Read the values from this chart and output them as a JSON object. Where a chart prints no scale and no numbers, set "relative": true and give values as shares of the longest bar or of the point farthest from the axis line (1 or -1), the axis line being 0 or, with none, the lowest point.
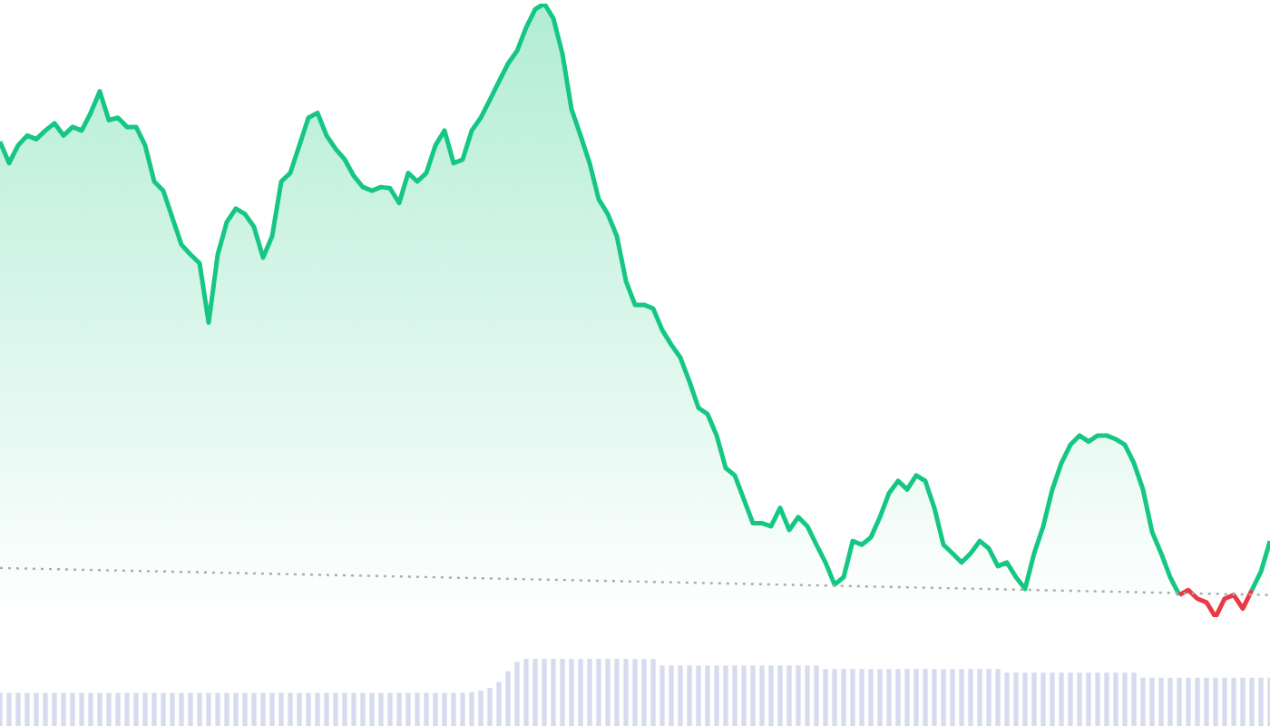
{
  "chart_data": [
    {
      "type": "area",
      "relative": true,
      "categories": [
        null,
        null,
        null,
        null,
        null,
        null,
        null,
        null,
        null,
        null,
        null,
        null,
        null,
        null,
        null,
        null,
        null,
        null,
        null,
        null,
        null,
        null,
        null,
        null,
        null,
        null,
        null,
        null,
        null,
        null,
        null,
        null,
        null,
        null,
        null,
        null,
        null,
        null,
        null,
        null,
        null,
        null,
        null,
        null,
        null,
        null,
        null,
        null,
        null,
        null,
        null,
        null,
        null,
        null,
        null,
        null,
        null,
        null,
        null,
        null,
        null,
        null,
        null,
        null,
        null,
        null,
        null,
        null,
        null,
        null,
        null,
        null,
        null,
        null,
        null,
        null,
        null,
        null,
        null,
        null,
        null,
        null,
        null,
        null,
        null,
        null,
        null,
        null,
        null,
        null,
        null,
        null,
        null,
        null,
        null,
        null,
        null,
        null,
        null,
        null,
        null,
        null,
        null,
        null,
        null,
        null,
        null,
        null,
        null,
        null,
        null,
        null,
        null,
        null,
        null,
        null,
        null,
        null,
        null,
        null,
        null,
        null,
        null,
        null,
        null,
        null,
        null,
        null,
        null,
        null,
        null,
        null,
        null,
        null,
        null,
        null,
        null,
        null,
        null,
        null,
        null
      ],
      "series": [
        {
          "color": "#16c784",
          "values": [
            0.775,
            0.74,
            0.769,
            0.785,
            0.779,
            0.793,
            0.805,
            0.785,
            0.799,
            0.793,
            0.822,
            0.857,
            0.81,
            0.814,
            0.799,
            0.799,
            0.769,
            0.71,
            0.695,
            0.651,
            0.607,
            0.591,
            0.577,
            0.48,
            0.591,
            0.644,
            0.666,
            0.657,
            0.636,
            0.586,
            0.621,
            0.71,
            0.724,
            0.769,
            0.814,
            0.822,
            0.785,
            0.763,
            0.746,
            0.719,
            0.701,
            0.695,
            0.701,
            0.699,
            0.675,
            0.724,
            0.71,
            0.724,
            0.769,
            0.793,
            0.74,
            0.746,
            0.793,
            0.814,
            0.843,
            0.873,
            0.902,
            0.923,
            0.961,
            0.991,
            1,
            0.976,
            0.918,
            0.828,
            0.785,
            0.74,
            0.681,
            0.657,
            0.621,
            0.548,
            0.509,
            0.509,
            0.503,
            0.468,
            0.444,
            0.423,
            0.384,
            0.341,
            0.331,
            0.296,
            0.243,
            0.231,
            0.192,
            0.153,
            0.153,
            0.148,
            0.178,
            0.142,
            0.163,
            0.148,
            0.118,
            0.089,
            0.053,
            0.065,
            0.124,
            0.118,
            0.13,
            0.163,
            0.202,
            0.222,
            0.208,
            0.231,
            0.222,
            0.178,
            0.118,
            0.104,
            0.089,
            0.104,
            0.124,
            0.112,
            0.083,
            0.089,
            0.065,
            0.046,
            0.104,
            0.148,
            0.208,
            0.251,
            0.281,
            0.296,
            0.286,
            0.296,
            0.296,
            0.29,
            0.281,
            0.251,
            0.208,
            0.139,
            0.104,
            0.065,
            0.036,
            null,
            null,
            null,
            null,
            null,
            null,
            null,
            0.044,
            0.074,
            0.124
          ]
        },
        {
          "type": "line",
          "color": "#ea3943",
          "values": [
            null,
            null,
            null,
            null,
            null,
            null,
            null,
            null,
            null,
            null,
            null,
            null,
            null,
            null,
            null,
            null,
            null,
            null,
            null,
            null,
            null,
            null,
            null,
            null,
            null,
            null,
            null,
            null,
            null,
            null,
            null,
            null,
            null,
            null,
            null,
            null,
            null,
            null,
            null,
            null,
            null,
            null,
            null,
            null,
            null,
            null,
            null,
            null,
            null,
            null,
            null,
            null,
            null,
            null,
            null,
            null,
            null,
            null,
            null,
            null,
            null,
            null,
            null,
            null,
            null,
            null,
            null,
            null,
            null,
            null,
            null,
            null,
            null,
            null,
            null,
            null,
            null,
            null,
            null,
            null,
            null,
            null,
            null,
            null,
            null,
            null,
            null,
            null,
            null,
            null,
            null,
            null,
            null,
            null,
            null,
            null,
            null,
            null,
            null,
            null,
            null,
            null,
            null,
            null,
            null,
            null,
            null,
            null,
            null,
            null,
            null,
            null,
            null,
            null,
            null,
            null,
            null,
            null,
            null,
            null,
            null,
            null,
            null,
            null,
            null,
            null,
            null,
            null,
            null,
            null,
            0.036,
            0.044,
            0.03,
            0.024,
            0,
            0.03,
            0.036,
            0.014,
            0.044,
            null,
            null
          ]
        },
        {
          "type": "line",
          "color": "#aaaaaa",
          "line_style": "dotted",
          "values": [
            0.08,
            null,
            null,
            null,
            null,
            null,
            null,
            null,
            null,
            null,
            null,
            null,
            null,
            null,
            null,
            null,
            null,
            null,
            null,
            null,
            null,
            null,
            null,
            null,
            null,
            null,
            null,
            null,
            null,
            null,
            null,
            null,
            null,
            null,
            null,
            null,
            null,
            null,
            null,
            null,
            null,
            null,
            null,
            null,
            null,
            null,
            null,
            null,
            null,
            null,
            null,
            null,
            null,
            null,
            null,
            null,
            null,
            null,
            null,
            null,
            null,
            null,
            null,
            null,
            null,
            null,
            null,
            null,
            null,
            null,
            null,
            null,
            null,
            null,
            null,
            null,
            null,
            null,
            null,
            null,
            null,
            null,
            null,
            null,
            null,
            null,
            null,
            null,
            null,
            null,
            null,
            null,
            null,
            null,
            null,
            null,
            null,
            null,
            null,
            null,
            null,
            null,
            null,
            null,
            null,
            null,
            null,
            null,
            null,
            null,
            null,
            null,
            null,
            null,
            null,
            null,
            null,
            null,
            null,
            null,
            null,
            null,
            null,
            null,
            null,
            null,
            null,
            null,
            null,
            null,
            null,
            null,
            null,
            null,
            null,
            null,
            null,
            null,
            null,
            null,
            0.036
          ]
        }
      ]
    },
    {
      "type": "bar",
      "relative": true,
      "categories": [
        null,
        null,
        null,
        null,
        null,
        null,
        null,
        null,
        null,
        null,
        null,
        null,
        null,
        null,
        null,
        null,
        null,
        null,
        null,
        null,
        null,
        null,
        null,
        null,
        null,
        null,
        null,
        null,
        null,
        null,
        null,
        null,
        null,
        null,
        null,
        null,
        null,
        null,
        null,
        null,
        null,
        null,
        null,
        null,
        null,
        null,
        null,
        null,
        null,
        null,
        null,
        null,
        null,
        null,
        null,
        null,
        null,
        null,
        null,
        null,
        null,
        null,
        null,
        null,
        null,
        null,
        null,
        null,
        null,
        null,
        null,
        null,
        null,
        null,
        null,
        null,
        null,
        null,
        null,
        null,
        null,
        null,
        null,
        null,
        null,
        null,
        null,
        null,
        null,
        null,
        null,
        null,
        null,
        null,
        null,
        null,
        null,
        null,
        null,
        null,
        null,
        null,
        null,
        null,
        null,
        null,
        null,
        null,
        null,
        null,
        null,
        null,
        null,
        null,
        null,
        null,
        null,
        null,
        null,
        null,
        null,
        null,
        null,
        null,
        null,
        null,
        null,
        null,
        null,
        null,
        null,
        null,
        null,
        null,
        null,
        null,
        null,
        null,
        null,
        null,
        null
      ],
      "series": [
        {
          "color": "#d6dbef",
          "values": [
            0.484,
            0.484,
            0.484,
            0.484,
            0.484,
            0.484,
            0.484,
            0.484,
            0.484,
            0.484,
            0.484,
            0.484,
            0.484,
            0.484,
            0.484,
            0.484,
            0.484,
            0.484,
            0.484,
            0.484,
            0.484,
            0.484,
            0.484,
            0.484,
            0.484,
            0.484,
            0.484,
            0.484,
            0.484,
            0.484,
            0.484,
            0.484,
            0.484,
            0.484,
            0.484,
            0.484,
            0.484,
            0.484,
            0.484,
            0.484,
            0.484,
            0.484,
            0.484,
            0.484,
            0.484,
            0.484,
            0.484,
            0.484,
            0.484,
            0.484,
            0.484,
            0.484,
            0.495,
            0.516,
            0.559,
            0.645,
            0.806,
            0.946,
            1,
            1,
            1,
            1,
            1,
            1,
            1,
            1,
            1,
            1,
            1,
            1,
            1,
            1,
            1,
            0.892,
            0.892,
            0.892,
            0.892,
            0.892,
            0.892,
            0.892,
            0.892,
            0.892,
            0.892,
            0.892,
            0.892,
            0.892,
            0.892,
            0.892,
            0.892,
            0.892,
            0.892,
            0.839,
            0.839,
            0.839,
            0.839,
            0.839,
            0.839,
            0.839,
            0.839,
            0.839,
            0.839,
            0.839,
            0.839,
            0.839,
            0.839,
            0.839,
            0.839,
            0.839,
            0.839,
            0.839,
            0.839,
            0.785,
            0.785,
            0.785,
            0.785,
            0.785,
            0.785,
            0.785,
            0.785,
            0.785,
            0.785,
            0.785,
            0.785,
            0.785,
            0.785,
            0.785,
            0.71,
            0.71,
            0.71,
            0.71,
            0.71,
            0.71,
            0.71,
            0.71,
            0.71,
            0.71,
            0.71,
            0.71,
            0.71,
            0.71,
            0.71
          ]
        }
      ]
    }
  ]
}
